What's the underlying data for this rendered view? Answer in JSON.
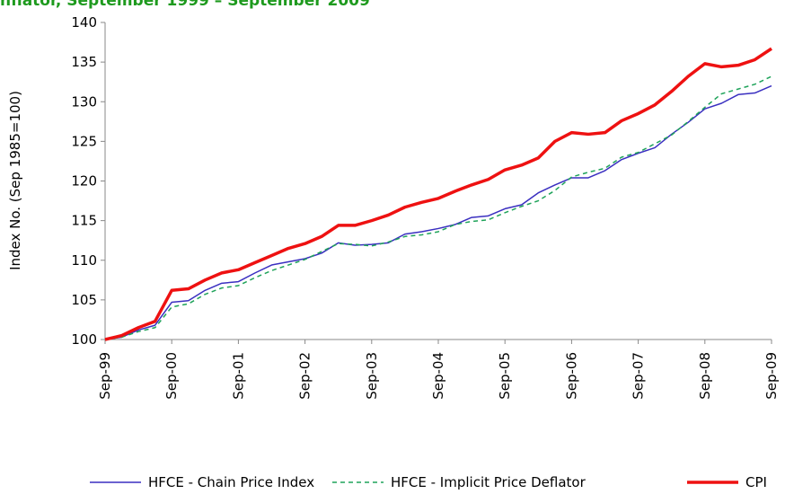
{
  "chart_data": {
    "type": "line",
    "title": "nflator, September 1999 – September 2009",
    "y_label": "Index No. (Sep 1985=100)",
    "categories": [
      "Sep-99",
      null,
      null,
      null,
      "Sep-00",
      null,
      null,
      null,
      "Sep-01",
      null,
      null,
      null,
      "Sep-02",
      null,
      null,
      null,
      "Sep-03",
      null,
      null,
      null,
      "Sep-04",
      null,
      null,
      null,
      "Sep-05",
      null,
      null,
      null,
      "Sep-06",
      null,
      null,
      null,
      "Sep-07",
      null,
      null,
      null,
      "Sep-08",
      null,
      null,
      null,
      "Sep-09"
    ],
    "series": [
      {
        "name": "HFCE - Chain Price Index",
        "color": "#3a2fc0",
        "dash": false,
        "width": 1.5,
        "values": [
          100,
          100.3,
          101.2,
          101.8,
          104.7,
          104.9,
          106.2,
          107.1,
          107.3,
          108.4,
          109.4,
          109.8,
          110.2,
          110.9,
          112.2,
          111.9,
          112.0,
          112.2,
          113.3,
          113.6,
          114.0,
          114.5,
          115.4,
          115.6,
          116.5,
          117.0,
          118.5,
          119.5,
          120.4,
          120.4,
          121.3,
          122.7,
          123.5,
          124.2,
          125.9,
          127.4,
          129.1,
          129.8,
          130.9,
          131.1,
          132.0
        ]
      },
      {
        "name": "HFCE - Implicit Price Deflator",
        "color": "#1fa35a",
        "dash": true,
        "width": 1.5,
        "values": [
          100,
          100.3,
          101.0,
          101.5,
          104.1,
          104.5,
          105.7,
          106.5,
          106.8,
          107.8,
          108.7,
          109.4,
          110.1,
          111.1,
          112.1,
          112.0,
          111.8,
          112.3,
          113.0,
          113.2,
          113.6,
          114.5,
          114.9,
          115.1,
          116.0,
          116.8,
          117.5,
          118.8,
          120.5,
          121.1,
          121.6,
          123.0,
          123.6,
          124.7,
          125.8,
          127.5,
          129.3,
          131.0,
          131.6,
          132.2,
          133.2
        ]
      },
      {
        "name": "CPI",
        "color": "#ee1111",
        "dash": false,
        "width": 3.5,
        "values": [
          100,
          100.5,
          101.5,
          102.3,
          106.2,
          106.4,
          107.5,
          108.4,
          108.8,
          109.7,
          110.6,
          111.5,
          112.1,
          113.0,
          114.4,
          114.4,
          115.0,
          115.7,
          116.7,
          117.3,
          117.8,
          118.7,
          119.5,
          120.2,
          121.4,
          122.0,
          122.9,
          125.0,
          126.1,
          125.9,
          126.1,
          127.6,
          128.5,
          129.6,
          131.3,
          133.2,
          134.8,
          134.4,
          134.6,
          135.3,
          136.7
        ]
      }
    ],
    "ylim": [
      100,
      140
    ],
    "yticks": [
      100,
      105,
      110,
      115,
      120,
      125,
      130,
      135,
      140
    ],
    "grid": false,
    "legend": "bottom"
  }
}
